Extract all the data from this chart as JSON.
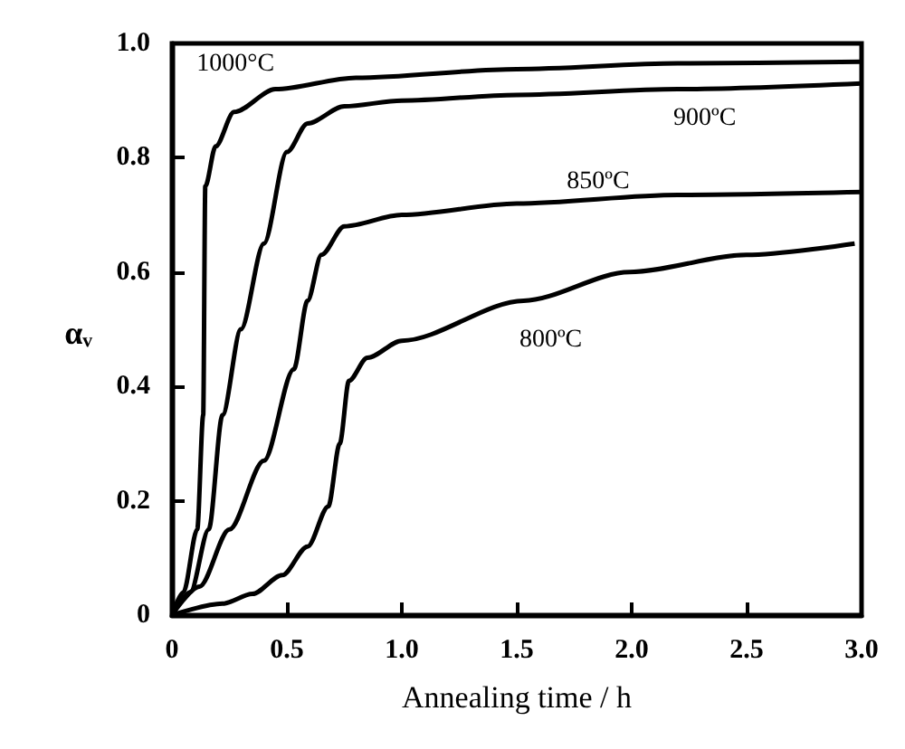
{
  "chart_data": {
    "type": "line",
    "xlabel": "Annealing time / h",
    "ylabel": "αᵥ",
    "xlim": [
      0,
      3
    ],
    "ylim": [
      0,
      1
    ],
    "xticks": [
      0,
      0.5,
      {
        "value": 1,
        "label": "1.0"
      },
      1.5,
      {
        "value": 2,
        "label": "2.0"
      },
      2.5,
      {
        "value": 3,
        "label": "3.0"
      }
    ],
    "yticks": [
      0,
      0.2,
      0.4,
      0.6,
      0.8,
      {
        "value": 1,
        "label": "1.0"
      }
    ],
    "grid": false,
    "line_style": "solid",
    "series": [
      {
        "name": "1000°C",
        "color": "#000000",
        "x": [
          0,
          0.05,
          0.11,
          0.136,
          0.145,
          0.19,
          0.27,
          0.45,
          0.8,
          1.5,
          2.2,
          3.0
        ],
        "values": [
          0,
          0.04,
          0.15,
          0.35,
          0.75,
          0.82,
          0.88,
          0.92,
          0.94,
          0.955,
          0.965,
          0.968
        ]
      },
      {
        "name": "900ºC",
        "color": "#000000",
        "x": [
          0,
          0.08,
          0.16,
          0.22,
          0.3,
          0.4,
          0.5,
          0.59,
          0.75,
          1.0,
          1.5,
          2.2,
          3.0
        ],
        "values": [
          0,
          0.04,
          0.15,
          0.35,
          0.5,
          0.65,
          0.81,
          0.86,
          0.89,
          0.9,
          0.91,
          0.92,
          0.93
        ]
      },
      {
        "name": "850ºC",
        "color": "#000000",
        "x": [
          0,
          0.12,
          0.25,
          0.4,
          0.53,
          0.59,
          0.65,
          0.75,
          1.0,
          1.5,
          2.2,
          3.0
        ],
        "values": [
          0,
          0.05,
          0.15,
          0.27,
          0.43,
          0.55,
          0.63,
          0.68,
          0.7,
          0.72,
          0.735,
          0.74
        ]
      },
      {
        "name": "800ºC",
        "color": "#000000",
        "x": [
          0,
          0.22,
          0.35,
          0.48,
          0.59,
          0.68,
          0.73,
          0.77,
          0.85,
          1.0,
          1.53,
          1.99,
          2.5,
          2.97
        ],
        "values": [
          0,
          0.02,
          0.037,
          0.07,
          0.12,
          0.19,
          0.3,
          0.41,
          0.45,
          0.48,
          0.55,
          0.6,
          0.63,
          0.65
        ]
      }
    ]
  }
}
